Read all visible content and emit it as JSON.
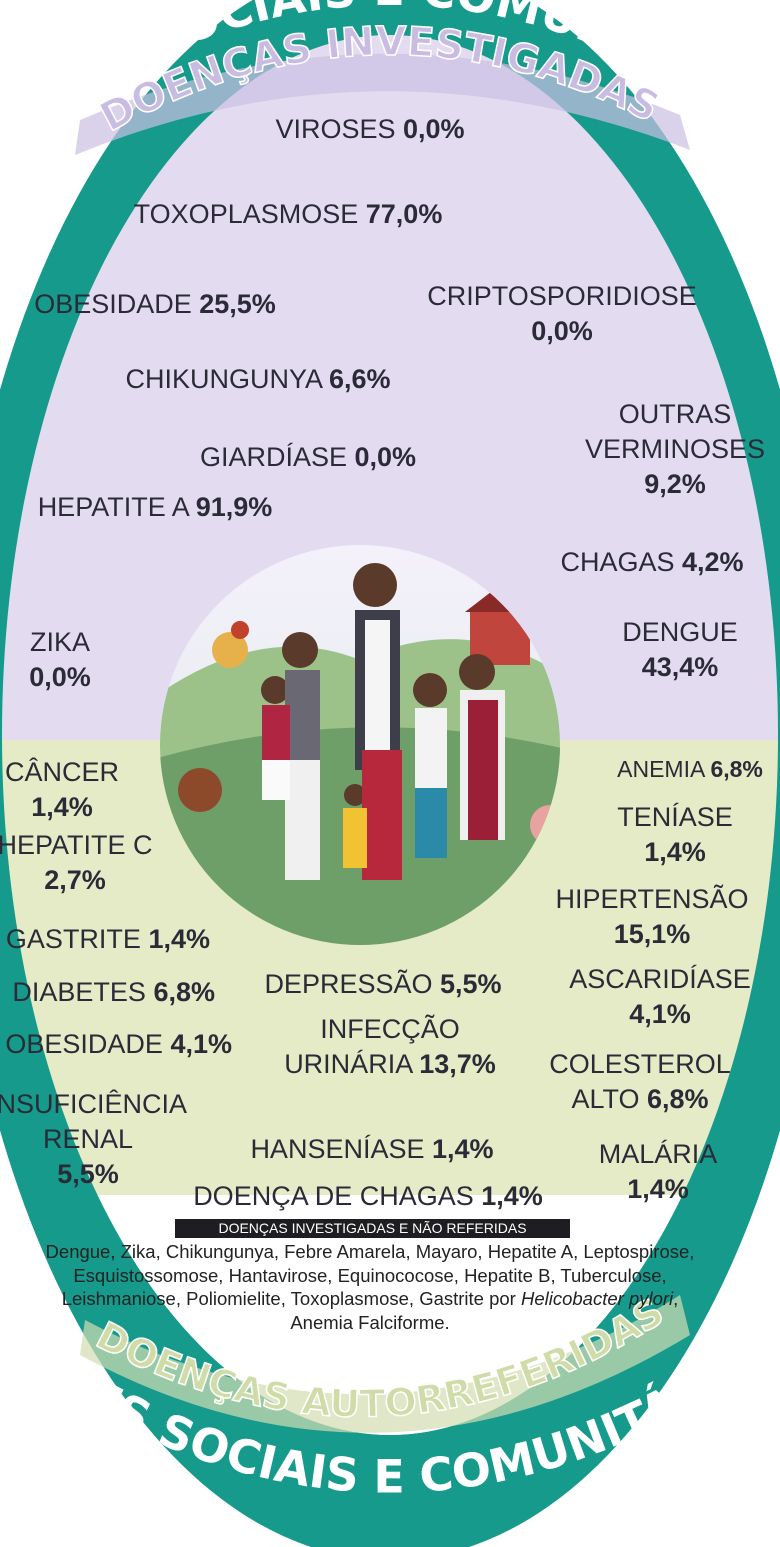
{
  "arcs": {
    "outer_top": "REDES SOCIAIS E COMUNITÁRIAS",
    "inner_top": "DOENÇAS INVESTIGADAS",
    "inner_bottom": "DOENÇAS AUTORREFERIDAS",
    "outer_bottom": "REDES SOCIAIS E COMUNITÁRIAS"
  },
  "investigated": [
    {
      "name": "VIROSES",
      "value": "0,0%"
    },
    {
      "name": "TOXOPLASMOSE",
      "value": "77,0%"
    },
    {
      "name": "OBESIDADE",
      "value": "25,5%"
    },
    {
      "name": "CRIPTOSPORIDIOSE",
      "value": "0,0%"
    },
    {
      "name": "CHIKUNGUNYA",
      "value": "6,6%"
    },
    {
      "name": "OUTRAS VERMINOSES",
      "value": "9,2%"
    },
    {
      "name": "GIARDÍASE",
      "value": "0,0%"
    },
    {
      "name": "HEPATITE A",
      "value": "91,9%"
    },
    {
      "name": "CHAGAS",
      "value": "4,2%"
    },
    {
      "name": "ZIKA",
      "value": "0,0%"
    },
    {
      "name": "DENGUE",
      "value": "43,4%"
    }
  ],
  "self_reported": [
    {
      "name": "CÂNCER",
      "value": "1,4%"
    },
    {
      "name": "ANEMIA",
      "value": "6,8%"
    },
    {
      "name": "TENÍASE",
      "value": "1,4%"
    },
    {
      "name": "HEPATITE C",
      "value": "2,7%"
    },
    {
      "name": "HIPERTENSÃO",
      "value": "15,1%"
    },
    {
      "name": "GASTRITE",
      "value": "1,4%"
    },
    {
      "name": "DIABETES",
      "value": "6,8%"
    },
    {
      "name": "DEPRESSÃO",
      "value": "5,5%"
    },
    {
      "name": "ASCARIDÍASE",
      "value": "4,1%"
    },
    {
      "name": "OBESIDADE",
      "value": "4,1%"
    },
    {
      "name": "INFECÇÃO URINÁRIA",
      "value": "13,7%"
    },
    {
      "name": "COLESTEROL ALTO",
      "value": "6,8%"
    },
    {
      "name": "INSUFICIÊNCIA RENAL",
      "value": "5,5%"
    },
    {
      "name": "HANSENÍASE",
      "value": "1,4%"
    },
    {
      "name": "MALÁRIA",
      "value": "1,4%"
    },
    {
      "name": "DOENÇA DE CHAGAS",
      "value": "1,4%"
    }
  ],
  "not_reported": {
    "title": "DOENÇAS INVESTIGADAS E NÃO REFERIDAS",
    "text_before": "Dengue, Zika, Chikungunya, Febre Amarela, Mayaro, Hepatite A, Leptospirose, Esquistossomose, Hantavirose, Equinococose, Hepatite B, Tuberculose, Leishmaniose, Poliomielite, Toxoplasmose, Gastrite por",
    "italic": "Helicobacter pylori",
    "text_after": ", Anemia Falciforme."
  }
}
